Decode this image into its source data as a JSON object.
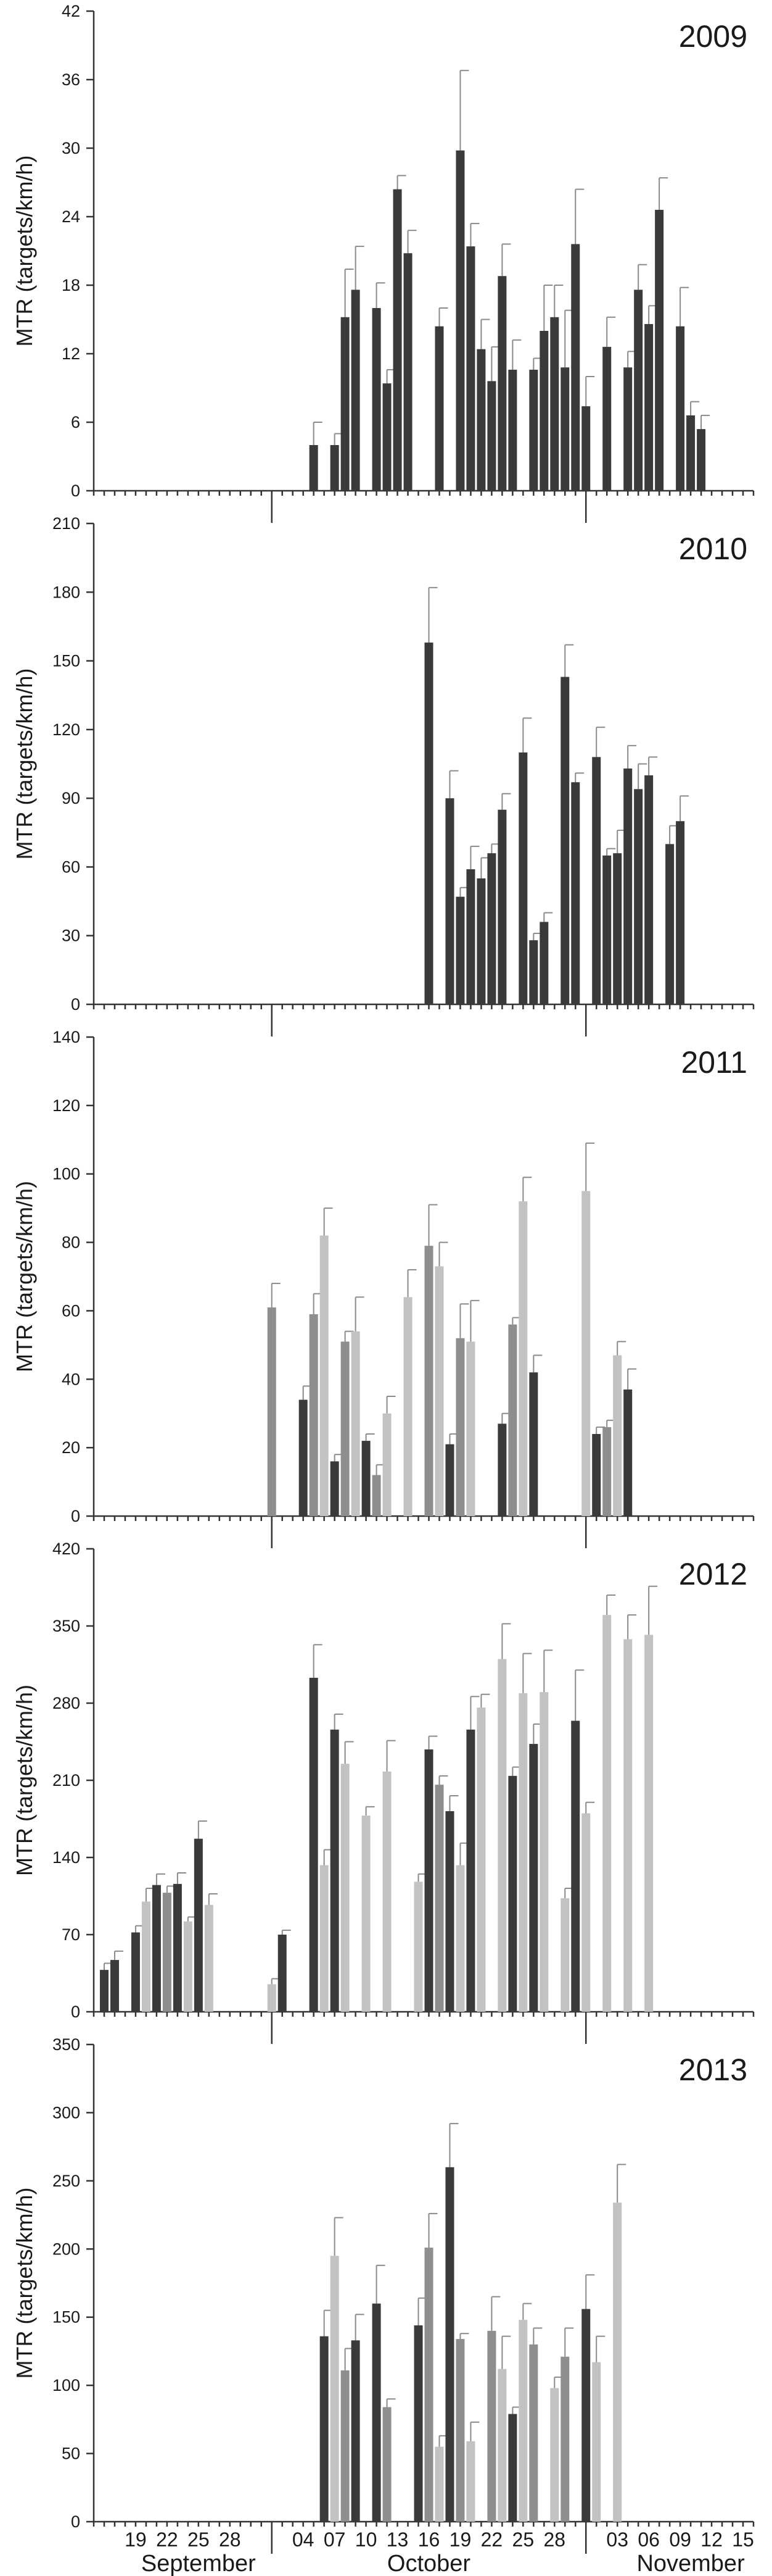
{
  "colors": {
    "dark": "#3a3a3a",
    "medium": "#8e8e8e",
    "light": "#c2c2c2",
    "error_bar": "#8a8a8a",
    "axis": "#333333"
  },
  "x_axis": {
    "day_ticks": [
      "19",
      "22",
      "25",
      "28",
      "04",
      "07",
      "10",
      "13",
      "16",
      "19",
      "22",
      "25",
      "28",
      "03",
      "06",
      "09",
      "12",
      "15"
    ],
    "day_values": [
      18,
      21,
      24,
      27,
      34,
      37,
      40,
      43,
      46,
      49,
      52,
      55,
      58,
      64,
      67,
      70,
      73,
      76
    ],
    "months": [
      {
        "name": "September",
        "center": 24
      },
      {
        "name": "October",
        "center": 46
      },
      {
        "name": "November",
        "center": 71
      }
    ],
    "month_boundaries": [
      31,
      61
    ],
    "range": [
      14,
      77
    ],
    "day_unit": "days from 1 September"
  },
  "chart_data": [
    {
      "type": "bar",
      "year_label": "2009",
      "ylabel": "MTR (targets/km/h)",
      "ylim": [
        0,
        42
      ],
      "yticks": [
        0,
        6,
        12,
        18,
        24,
        30,
        36,
        42
      ],
      "ytick_labels": [
        "0",
        "6",
        "12",
        "18",
        "24",
        "30",
        "36",
        "42"
      ],
      "bars": [
        {
          "day": 35,
          "value": 4.0,
          "error": 2.0,
          "shade": "dark"
        },
        {
          "day": 37,
          "value": 4.0,
          "error": 1.0,
          "shade": "dark"
        },
        {
          "day": 38,
          "value": 15.2,
          "error": 4.2,
          "shade": "dark"
        },
        {
          "day": 39,
          "value": 17.6,
          "error": 3.8,
          "shade": "dark"
        },
        {
          "day": 41,
          "value": 16.0,
          "error": 2.2,
          "shade": "dark"
        },
        {
          "day": 42,
          "value": 9.4,
          "error": 1.2,
          "shade": "dark"
        },
        {
          "day": 43,
          "value": 26.4,
          "error": 1.2,
          "shade": "dark"
        },
        {
          "day": 44,
          "value": 20.8,
          "error": 2.0,
          "shade": "dark"
        },
        {
          "day": 47,
          "value": 14.4,
          "error": 1.6,
          "shade": "dark"
        },
        {
          "day": 49,
          "value": 29.8,
          "error": 7.0,
          "shade": "dark"
        },
        {
          "day": 50,
          "value": 21.4,
          "error": 2.0,
          "shade": "dark"
        },
        {
          "day": 51,
          "value": 12.4,
          "error": 2.6,
          "shade": "dark"
        },
        {
          "day": 52,
          "value": 9.6,
          "error": 3.0,
          "shade": "dark"
        },
        {
          "day": 53,
          "value": 18.8,
          "error": 2.8,
          "shade": "dark"
        },
        {
          "day": 54,
          "value": 10.6,
          "error": 2.6,
          "shade": "dark"
        },
        {
          "day": 56,
          "value": 10.6,
          "error": 1.0,
          "shade": "dark"
        },
        {
          "day": 57,
          "value": 14.0,
          "error": 4.0,
          "shade": "dark"
        },
        {
          "day": 58,
          "value": 15.2,
          "error": 2.8,
          "shade": "dark"
        },
        {
          "day": 59,
          "value": 10.8,
          "error": 5.0,
          "shade": "dark"
        },
        {
          "day": 60,
          "value": 21.6,
          "error": 4.8,
          "shade": "dark"
        },
        {
          "day": 61,
          "value": 7.4,
          "error": 2.6,
          "shade": "dark"
        },
        {
          "day": 63,
          "value": 12.6,
          "error": 2.6,
          "shade": "dark"
        },
        {
          "day": 65,
          "value": 10.8,
          "error": 1.4,
          "shade": "dark"
        },
        {
          "day": 66,
          "value": 17.6,
          "error": 2.2,
          "shade": "dark"
        },
        {
          "day": 67,
          "value": 14.6,
          "error": 1.6,
          "shade": "dark"
        },
        {
          "day": 68,
          "value": 24.6,
          "error": 2.8,
          "shade": "dark"
        },
        {
          "day": 70,
          "value": 14.4,
          "error": 3.4,
          "shade": "dark"
        },
        {
          "day": 71,
          "value": 6.6,
          "error": 1.2,
          "shade": "dark"
        },
        {
          "day": 72,
          "value": 5.4,
          "error": 1.2,
          "shade": "dark"
        }
      ]
    },
    {
      "type": "bar",
      "year_label": "2010",
      "ylabel": "MTR (targets/km/h)",
      "ylim": [
        0,
        210
      ],
      "yticks": [
        0,
        30,
        60,
        90,
        120,
        150,
        180,
        210
      ],
      "ytick_labels": [
        "0",
        "30",
        "60",
        "90",
        "120",
        "150",
        "180",
        "210"
      ],
      "bars": [
        {
          "day": 46,
          "value": 158,
          "error": 24,
          "shade": "dark"
        },
        {
          "day": 48,
          "value": 90,
          "error": 12,
          "shade": "dark"
        },
        {
          "day": 49,
          "value": 47,
          "error": 4,
          "shade": "dark"
        },
        {
          "day": 50,
          "value": 59,
          "error": 10,
          "shade": "dark"
        },
        {
          "day": 51,
          "value": 55,
          "error": 9,
          "shade": "dark"
        },
        {
          "day": 52,
          "value": 66,
          "error": 4,
          "shade": "dark"
        },
        {
          "day": 53,
          "value": 85,
          "error": 7,
          "shade": "dark"
        },
        {
          "day": 55,
          "value": 110,
          "error": 15,
          "shade": "dark"
        },
        {
          "day": 56,
          "value": 28,
          "error": 3,
          "shade": "dark"
        },
        {
          "day": 57,
          "value": 36,
          "error": 4,
          "shade": "dark"
        },
        {
          "day": 59,
          "value": 143,
          "error": 14,
          "shade": "dark"
        },
        {
          "day": 60,
          "value": 97,
          "error": 4,
          "shade": "dark"
        },
        {
          "day": 62,
          "value": 108,
          "error": 13,
          "shade": "dark"
        },
        {
          "day": 63,
          "value": 65,
          "error": 3,
          "shade": "dark"
        },
        {
          "day": 64,
          "value": 66,
          "error": 10,
          "shade": "dark"
        },
        {
          "day": 65,
          "value": 103,
          "error": 10,
          "shade": "dark"
        },
        {
          "day": 66,
          "value": 94,
          "error": 11,
          "shade": "dark"
        },
        {
          "day": 67,
          "value": 100,
          "error": 8,
          "shade": "dark"
        },
        {
          "day": 69,
          "value": 70,
          "error": 8,
          "shade": "dark"
        },
        {
          "day": 70,
          "value": 80,
          "error": 11,
          "shade": "dark"
        }
      ]
    },
    {
      "type": "bar",
      "year_label": "2011",
      "ylabel": "MTR (targets/km/h)",
      "ylim": [
        0,
        140
      ],
      "yticks": [
        0,
        20,
        40,
        60,
        80,
        100,
        120,
        140
      ],
      "ytick_labels": [
        "0",
        "20",
        "40",
        "60",
        "80",
        "100",
        "120",
        "140"
      ],
      "bars": [
        {
          "day": 31,
          "value": 61,
          "error": 7,
          "shade": "medium"
        },
        {
          "day": 34,
          "value": 34,
          "error": 4,
          "shade": "dark"
        },
        {
          "day": 35,
          "value": 59,
          "error": 6,
          "shade": "medium"
        },
        {
          "day": 36,
          "value": 82,
          "error": 8,
          "shade": "light"
        },
        {
          "day": 37,
          "value": 16,
          "error": 2,
          "shade": "dark"
        },
        {
          "day": 38,
          "value": 51,
          "error": 3,
          "shade": "medium"
        },
        {
          "day": 39,
          "value": 54,
          "error": 10,
          "shade": "light"
        },
        {
          "day": 40,
          "value": 22,
          "error": 2,
          "shade": "dark"
        },
        {
          "day": 41,
          "value": 12,
          "error": 3,
          "shade": "medium"
        },
        {
          "day": 42,
          "value": 30,
          "error": 5,
          "shade": "light"
        },
        {
          "day": 44,
          "value": 64,
          "error": 8,
          "shade": "light"
        },
        {
          "day": 46,
          "value": 79,
          "error": 12,
          "shade": "medium"
        },
        {
          "day": 47,
          "value": 73,
          "error": 7,
          "shade": "light"
        },
        {
          "day": 48,
          "value": 21,
          "error": 3,
          "shade": "dark"
        },
        {
          "day": 49,
          "value": 52,
          "error": 10,
          "shade": "medium"
        },
        {
          "day": 50,
          "value": 51,
          "error": 12,
          "shade": "light"
        },
        {
          "day": 53,
          "value": 27,
          "error": 3,
          "shade": "dark"
        },
        {
          "day": 54,
          "value": 56,
          "error": 2,
          "shade": "medium"
        },
        {
          "day": 55,
          "value": 92,
          "error": 7,
          "shade": "light"
        },
        {
          "day": 56,
          "value": 42,
          "error": 5,
          "shade": "dark"
        },
        {
          "day": 61,
          "value": 95,
          "error": 14,
          "shade": "light"
        },
        {
          "day": 62,
          "value": 24,
          "error": 2,
          "shade": "dark"
        },
        {
          "day": 63,
          "value": 26,
          "error": 2,
          "shade": "medium"
        },
        {
          "day": 64,
          "value": 47,
          "error": 4,
          "shade": "light"
        },
        {
          "day": 65,
          "value": 37,
          "error": 6,
          "shade": "dark"
        }
      ]
    },
    {
      "type": "bar",
      "year_label": "2012",
      "ylabel": "MTR (targets/km/h)",
      "ylim": [
        0,
        420
      ],
      "yticks": [
        0,
        70,
        140,
        210,
        280,
        350,
        420
      ],
      "ytick_labels": [
        "0",
        "70",
        "140",
        "210",
        "280",
        "350",
        "420"
      ],
      "bars": [
        {
          "day": 15,
          "value": 38,
          "error": 6,
          "shade": "dark"
        },
        {
          "day": 16,
          "value": 47,
          "error": 8,
          "shade": "dark"
        },
        {
          "day": 18,
          "value": 72,
          "error": 6,
          "shade": "dark"
        },
        {
          "day": 19,
          "value": 100,
          "error": 12,
          "shade": "light"
        },
        {
          "day": 20,
          "value": 115,
          "error": 10,
          "shade": "dark"
        },
        {
          "day": 21,
          "value": 108,
          "error": 6,
          "shade": "medium"
        },
        {
          "day": 22,
          "value": 116,
          "error": 10,
          "shade": "dark"
        },
        {
          "day": 23,
          "value": 82,
          "error": 4,
          "shade": "light"
        },
        {
          "day": 24,
          "value": 157,
          "error": 16,
          "shade": "dark"
        },
        {
          "day": 25,
          "value": 97,
          "error": 10,
          "shade": "light"
        },
        {
          "day": 31,
          "value": 25,
          "error": 5,
          "shade": "light"
        },
        {
          "day": 32,
          "value": 70,
          "error": 4,
          "shade": "dark"
        },
        {
          "day": 35,
          "value": 303,
          "error": 30,
          "shade": "dark"
        },
        {
          "day": 36,
          "value": 133,
          "error": 14,
          "shade": "light"
        },
        {
          "day": 37,
          "value": 256,
          "error": 14,
          "shade": "dark"
        },
        {
          "day": 38,
          "value": 225,
          "error": 20,
          "shade": "light"
        },
        {
          "day": 40,
          "value": 178,
          "error": 8,
          "shade": "light"
        },
        {
          "day": 42,
          "value": 218,
          "error": 28,
          "shade": "light"
        },
        {
          "day": 45,
          "value": 118,
          "error": 7,
          "shade": "light"
        },
        {
          "day": 46,
          "value": 238,
          "error": 12,
          "shade": "dark"
        },
        {
          "day": 47,
          "value": 206,
          "error": 8,
          "shade": "medium"
        },
        {
          "day": 48,
          "value": 182,
          "error": 14,
          "shade": "dark"
        },
        {
          "day": 49,
          "value": 133,
          "error": 20,
          "shade": "light"
        },
        {
          "day": 50,
          "value": 256,
          "error": 30,
          "shade": "dark"
        },
        {
          "day": 51,
          "value": 276,
          "error": 12,
          "shade": "light"
        },
        {
          "day": 53,
          "value": 320,
          "error": 32,
          "shade": "light"
        },
        {
          "day": 54,
          "value": 214,
          "error": 8,
          "shade": "dark"
        },
        {
          "day": 55,
          "value": 289,
          "error": 36,
          "shade": "light"
        },
        {
          "day": 56,
          "value": 243,
          "error": 18,
          "shade": "dark"
        },
        {
          "day": 57,
          "value": 290,
          "error": 38,
          "shade": "light"
        },
        {
          "day": 59,
          "value": 103,
          "error": 9,
          "shade": "light"
        },
        {
          "day": 60,
          "value": 264,
          "error": 46,
          "shade": "dark"
        },
        {
          "day": 61,
          "value": 180,
          "error": 10,
          "shade": "light"
        },
        {
          "day": 63,
          "value": 360,
          "error": 18,
          "shade": "light"
        },
        {
          "day": 65,
          "value": 338,
          "error": 22,
          "shade": "light"
        },
        {
          "day": 67,
          "value": 342,
          "error": 44,
          "shade": "light"
        }
      ]
    },
    {
      "type": "bar",
      "year_label": "2013",
      "ylabel": "MTR (targets/km/h)",
      "ylim": [
        0,
        350
      ],
      "yticks": [
        0,
        50,
        100,
        150,
        200,
        250,
        300,
        350
      ],
      "ytick_labels": [
        "0",
        "50",
        "100",
        "150",
        "200",
        "250",
        "300",
        "350"
      ],
      "bars": [
        {
          "day": 36,
          "value": 136,
          "error": 19,
          "shade": "dark"
        },
        {
          "day": 37,
          "value": 195,
          "error": 28,
          "shade": "light"
        },
        {
          "day": 38,
          "value": 111,
          "error": 16,
          "shade": "medium"
        },
        {
          "day": 39,
          "value": 133,
          "error": 19,
          "shade": "dark"
        },
        {
          "day": 41,
          "value": 160,
          "error": 28,
          "shade": "dark"
        },
        {
          "day": 42,
          "value": 84,
          "error": 6,
          "shade": "medium"
        },
        {
          "day": 45,
          "value": 144,
          "error": 20,
          "shade": "dark"
        },
        {
          "day": 46,
          "value": 201,
          "error": 25,
          "shade": "medium"
        },
        {
          "day": 47,
          "value": 55,
          "error": 8,
          "shade": "light"
        },
        {
          "day": 48,
          "value": 260,
          "error": 32,
          "shade": "dark"
        },
        {
          "day": 49,
          "value": 134,
          "error": 4,
          "shade": "medium"
        },
        {
          "day": 50,
          "value": 59,
          "error": 14,
          "shade": "light"
        },
        {
          "day": 52,
          "value": 140,
          "error": 25,
          "shade": "medium"
        },
        {
          "day": 53,
          "value": 112,
          "error": 24,
          "shade": "light"
        },
        {
          "day": 54,
          "value": 79,
          "error": 5,
          "shade": "dark"
        },
        {
          "day": 55,
          "value": 148,
          "error": 12,
          "shade": "light"
        },
        {
          "day": 56,
          "value": 130,
          "error": 12,
          "shade": "medium"
        },
        {
          "day": 58,
          "value": 98,
          "error": 8,
          "shade": "light"
        },
        {
          "day": 59,
          "value": 121,
          "error": 21,
          "shade": "medium"
        },
        {
          "day": 61,
          "value": 156,
          "error": 25,
          "shade": "dark"
        },
        {
          "day": 62,
          "value": 117,
          "error": 19,
          "shade": "light"
        },
        {
          "day": 64,
          "value": 234,
          "error": 28,
          "shade": "light"
        }
      ]
    }
  ]
}
